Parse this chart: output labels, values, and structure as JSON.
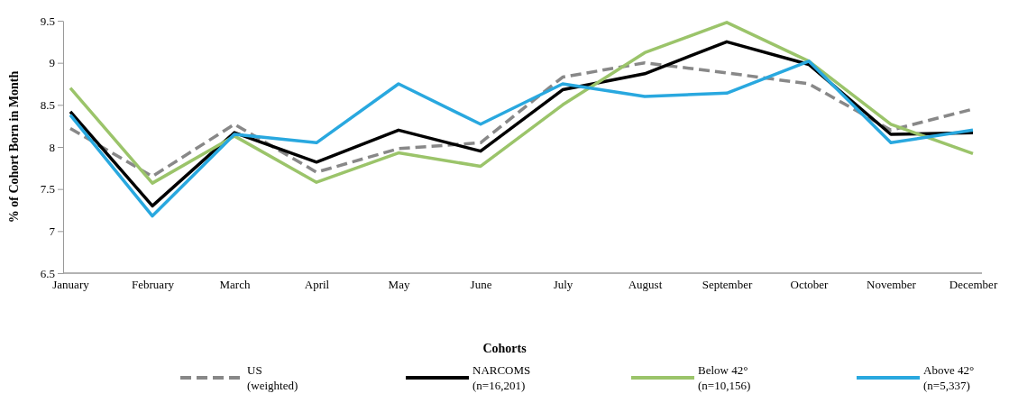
{
  "chart_data": {
    "type": "line",
    "ylabel": "% of Cohort Born in Month",
    "legend_title": "Cohorts",
    "legend": "bottom",
    "categories": [
      "January",
      "February",
      "March",
      "April",
      "May",
      "June",
      "July",
      "August",
      "September",
      "October",
      "November",
      "December"
    ],
    "ylim": [
      6.5,
      9.5
    ],
    "yticks": [
      6.5,
      7,
      7.5,
      8,
      8.5,
      9,
      9.5
    ],
    "marker": "none",
    "series": [
      {
        "name": "US\n(weighted)",
        "color": "#888888",
        "line_style": "dashed",
        "values": [
          8.22,
          7.65,
          8.27,
          7.7,
          7.98,
          8.05,
          8.83,
          9.0,
          8.88,
          8.75,
          8.2,
          8.45
        ]
      },
      {
        "name": "NARCOMS\n(n=16,201)",
        "color": "#000000",
        "line_style": "solid",
        "values": [
          8.42,
          7.3,
          8.17,
          7.82,
          8.2,
          7.95,
          8.68,
          8.87,
          9.25,
          8.98,
          8.15,
          8.17
        ]
      },
      {
        "name": "Below 42°\n(n=10,156)",
        "color": "#9bc46a",
        "line_style": "solid",
        "values": [
          8.7,
          7.57,
          8.13,
          7.58,
          7.93,
          7.77,
          8.5,
          9.12,
          9.48,
          9.02,
          8.27,
          7.92
        ]
      },
      {
        "name": "Above 42°\n(n=5,337)",
        "color": "#29a8df",
        "line_style": "solid",
        "values": [
          8.38,
          7.18,
          8.15,
          8.05,
          8.75,
          8.27,
          8.75,
          8.6,
          8.64,
          9.02,
          8.05,
          8.2
        ]
      }
    ]
  }
}
